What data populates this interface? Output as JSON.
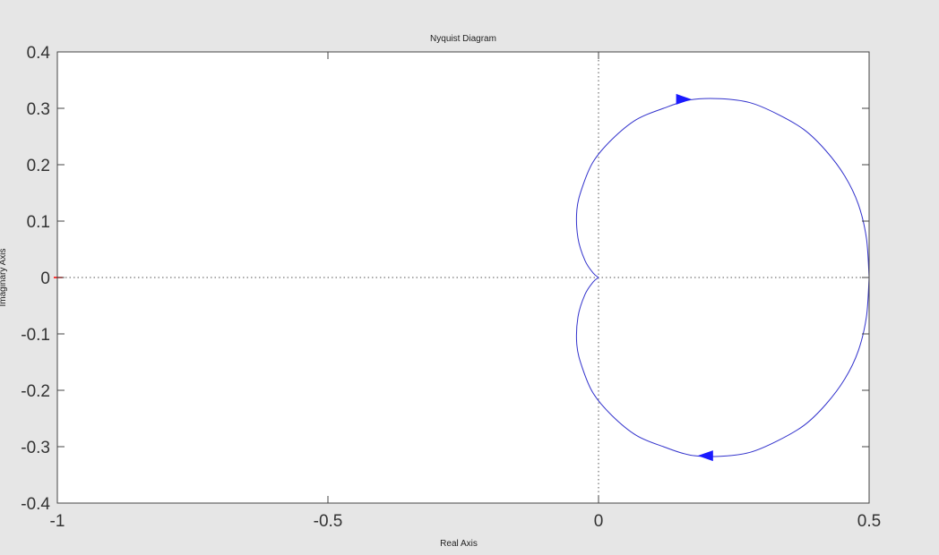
{
  "chart_data": {
    "type": "line",
    "title": "Nyquist Diagram",
    "xlabel": "Real Axis",
    "ylabel": "Imaginary Axis",
    "xlim": [
      -1,
      0.5
    ],
    "ylim": [
      -0.4,
      0.4
    ],
    "xticks": [
      -1,
      -0.5,
      0,
      0.5
    ],
    "xtick_labels": [
      "-1",
      "-0.5",
      "0",
      "0.5"
    ],
    "yticks": [
      -0.4,
      -0.3,
      -0.2,
      -0.1,
      0,
      0.1,
      0.2,
      0.3,
      0.4
    ],
    "ytick_labels": [
      "-0.4",
      "-0.3",
      "-0.2",
      "-0.1",
      "0",
      "0.1",
      "0.2",
      "0.3",
      "0.4"
    ],
    "grid": false,
    "reference_lines": {
      "x": 0,
      "y": 0,
      "style": "dotted"
    },
    "critical_point": {
      "x": -1,
      "y": 0,
      "color": "#ff0000"
    },
    "series": [
      {
        "color": "#3232cc",
        "x": [
          0.5,
          0.495,
          0.48,
          0.455,
          0.42,
          0.38,
          0.33,
          0.28,
          0.225,
          0.17,
          0.12,
          0.07,
          0.025,
          -0.01,
          -0.03,
          -0.04,
          -0.038,
          -0.025,
          -0.01,
          0
        ],
        "y": [
          0,
          0.07,
          0.13,
          0.18,
          0.225,
          0.262,
          0.29,
          0.31,
          0.317,
          0.315,
          0.3,
          0.28,
          0.245,
          0.205,
          0.16,
          0.12,
          0.07,
          0.03,
          0.008,
          0
        ]
      },
      {
        "color": "#3232cc",
        "x": [
          0.5,
          0.495,
          0.48,
          0.455,
          0.42,
          0.38,
          0.33,
          0.28,
          0.225,
          0.17,
          0.12,
          0.07,
          0.025,
          -0.01,
          -0.03,
          -0.04,
          -0.038,
          -0.025,
          -0.01,
          0
        ],
        "y": [
          0,
          -0.07,
          -0.13,
          -0.18,
          -0.225,
          -0.262,
          -0.29,
          -0.31,
          -0.317,
          -0.315,
          -0.3,
          -0.28,
          -0.245,
          -0.205,
          -0.16,
          -0.12,
          -0.07,
          -0.03,
          -0.008,
          0
        ]
      }
    ],
    "arrows": [
      {
        "x": 0.155,
        "y": 0.316,
        "direction": "right",
        "color": "#1a1aff"
      },
      {
        "x": 0.2,
        "y": -0.316,
        "direction": "left",
        "color": "#1a1aff"
      }
    ]
  }
}
